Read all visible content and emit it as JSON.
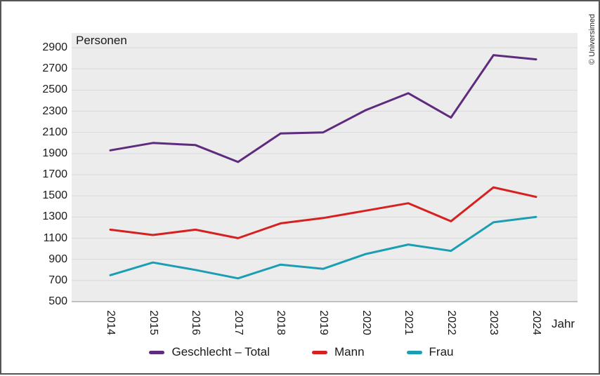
{
  "copyright": "© Universimed",
  "axes": {
    "y_axis_title": "Personen",
    "x_axis_title": "Jahr"
  },
  "chart_data": {
    "type": "line",
    "x": [
      2014,
      2015,
      2016,
      2017,
      2018,
      2019,
      2020,
      2021,
      2022,
      2023,
      2024
    ],
    "series": [
      {
        "name": "Geschlecht – Total",
        "color": "#5e2b7e",
        "values": [
          1930,
          2000,
          1980,
          1820,
          2090,
          2100,
          2310,
          2470,
          2240,
          2830,
          2790
        ]
      },
      {
        "name": "Mann",
        "color": "#d62120",
        "values": [
          1180,
          1130,
          1180,
          1100,
          1240,
          1290,
          1360,
          1430,
          1260,
          1580,
          1490
        ]
      },
      {
        "name": "Frau",
        "color": "#1b9eb4",
        "values": [
          750,
          870,
          800,
          720,
          850,
          810,
          950,
          1040,
          980,
          1250,
          1300
        ]
      }
    ],
    "title": "",
    "ylabel": "Personen",
    "xlabel": "Jahr",
    "ylim": [
      500,
      2900
    ],
    "ytick_step": 200,
    "grid": true,
    "legend_position": "bottom",
    "plot_bg": "#ececec",
    "grid_color": "#d9d9d9",
    "axis_line_color": "#8c8c8c"
  }
}
